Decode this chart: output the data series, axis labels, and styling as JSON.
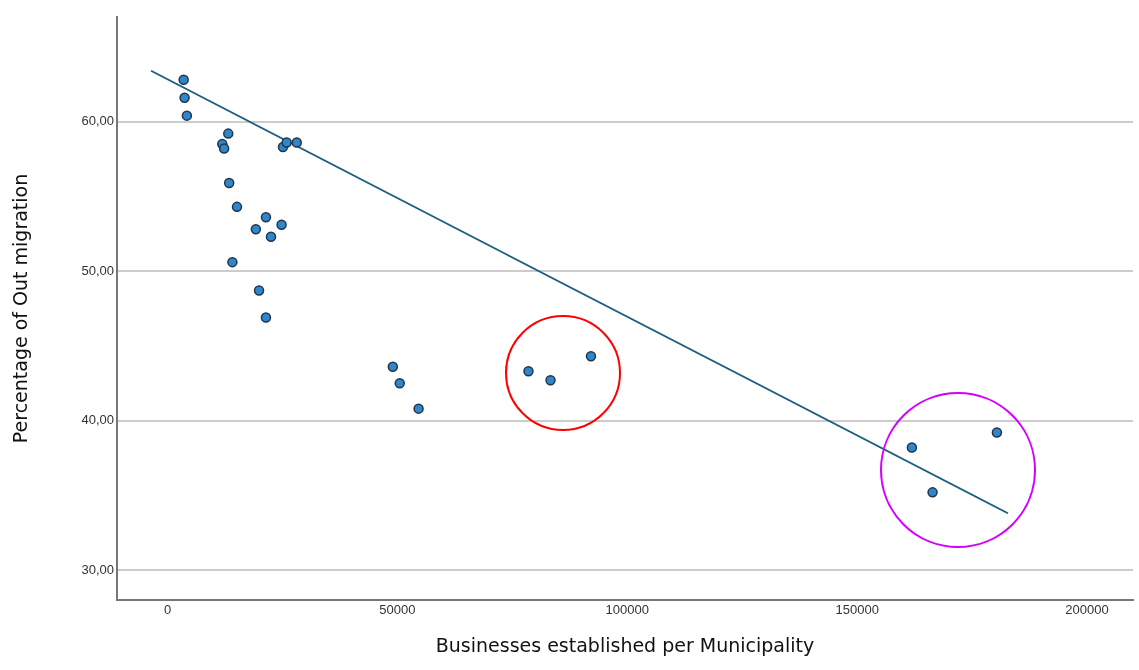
{
  "chart_data": {
    "type": "scatter",
    "xlabel": "Businesses established per Municipality",
    "ylabel": "Percentage of Out migration",
    "xlim": [
      -11000,
      210000
    ],
    "xticks": [
      0,
      50000,
      100000,
      150000,
      200000
    ],
    "ylim": [
      28,
      67
    ],
    "yticks": [
      {
        "value": 30,
        "label": "30,00"
      },
      {
        "value": 40,
        "label": "40,00"
      },
      {
        "value": 50,
        "label": "50,00"
      },
      {
        "value": 60,
        "label": "60,00"
      }
    ],
    "grid": "y",
    "legend": false,
    "series": [
      {
        "type": "scatter",
        "marker": "circle",
        "color": "#2f86c8",
        "x": [
          3500,
          3700,
          4200,
          13200,
          11900,
          12300,
          13400,
          15100,
          25100,
          25900,
          28100,
          19200,
          21400,
          22500,
          24800,
          14100,
          19900,
          21400,
          49000,
          50500,
          54600,
          78500,
          83300,
          92100,
          161900,
          166400,
          180400
        ],
        "values": [
          62.8,
          61.6,
          60.4,
          59.2,
          58.5,
          58.2,
          55.9,
          54.3,
          58.3,
          58.6,
          58.6,
          52.8,
          53.6,
          52.3,
          53.1,
          50.6,
          48.7,
          46.9,
          43.6,
          42.5,
          40.8,
          43.3,
          42.7,
          44.3,
          38.2,
          35.2,
          39.2
        ]
      },
      {
        "type": "line",
        "color": "#1a5e80",
        "x": [
          -3600,
          182800
        ],
        "values": [
          63.4,
          33.8
        ]
      }
    ]
  }
}
